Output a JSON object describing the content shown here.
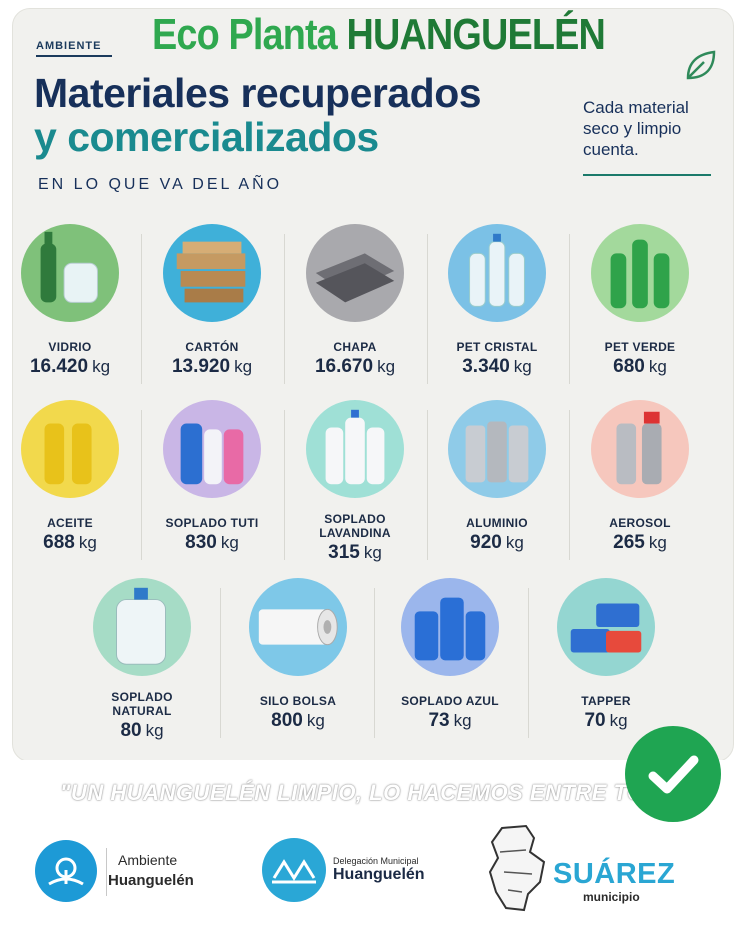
{
  "header": {
    "brand_part1": "Eco Planta",
    "brand_part2": "HUANGUELÉN",
    "kicker": "AMBIENTE",
    "title_line1": "Materiales recuperados",
    "title_line2": "y comercializados",
    "subtitle": "EN LO QUE VA DEL AÑO",
    "tagline": "Cada material seco y limpio cuenta."
  },
  "unit": "kg",
  "materials": [
    {
      "name": "VIDRIO",
      "value": "16.420",
      "bg": "#7fc17a",
      "icon": "glass-bottle-jar-icon"
    },
    {
      "name": "CARTÓN",
      "value": "13.920",
      "bg": "#3fb0d9",
      "icon": "cardboard-boxes-icon"
    },
    {
      "name": "CHAPA",
      "value": "16.670",
      "bg": "#a9a9ad",
      "icon": "metal-sheets-icon"
    },
    {
      "name": "PET CRISTAL",
      "value": "3.340",
      "bg": "#7bc1e6",
      "icon": "clear-bottles-icon"
    },
    {
      "name": "PET VERDE",
      "value": "680",
      "bg": "#a3d99c",
      "icon": "green-bottles-icon"
    },
    {
      "name": "ACEITE",
      "value": "688",
      "bg": "#f2d94c",
      "icon": "oil-bottles-icon"
    },
    {
      "name": "SOPLADO TUTI",
      "value": "830",
      "bg": "#c9b6e6",
      "icon": "detergent-bottles-icon"
    },
    {
      "name": "SOPLADO LAVANDINA",
      "value": "315",
      "bg": "#9fe0d6",
      "icon": "bleach-bottles-icon"
    },
    {
      "name": "ALUMINIO",
      "value": "920",
      "bg": "#8fcbe8",
      "icon": "aluminum-cans-icon"
    },
    {
      "name": "AEROSOL",
      "value": "265",
      "bg": "#f6c7bd",
      "icon": "aerosol-cans-icon"
    },
    {
      "name": "SOPLADO NATURAL",
      "value": "80",
      "bg": "#a6dcc6",
      "icon": "water-jug-icon"
    },
    {
      "name": "SILO BOLSA",
      "value": "800",
      "bg": "#7ec8e8",
      "icon": "silo-bag-roll-icon"
    },
    {
      "name": "SOPLADO AZUL",
      "value": "73",
      "bg": "#9bb6ec",
      "icon": "blue-containers-icon"
    },
    {
      "name": "TAPPER",
      "value": "70",
      "bg": "#94d6d1",
      "icon": "plastic-containers-icon"
    }
  ],
  "footer": {
    "motto": "\"UN HUANGUELÉN LIMPIO, LO HACEMOS ENTRE TODOS\"",
    "logo1_line1": "Ambiente",
    "logo1_line2": "Huanguelén",
    "logo2_line1": "Delegación Municipal",
    "logo2_line2": "Huanguelén",
    "logo3_line1": "SUÁREZ",
    "logo3_line2": "municipio"
  },
  "colors": {
    "brand_green": "#2fa84f",
    "title_navy": "#17305a",
    "title_teal": "#1a8a8f",
    "check_green": "#1fa552"
  }
}
